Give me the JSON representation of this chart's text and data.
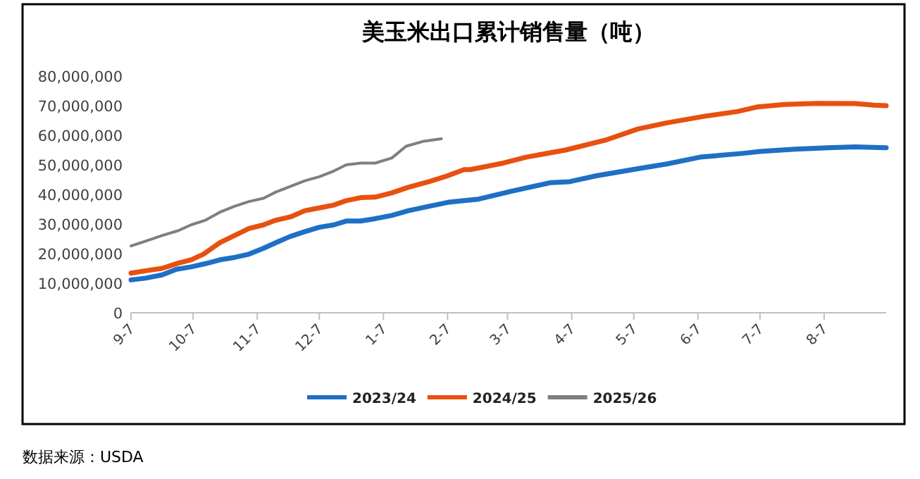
{
  "chart_data": {
    "type": "line",
    "title": "美玉米出口累计销售量（吨）",
    "annotations": [
      "数据来源：USDA"
    ],
    "xlim": [
      "2023-09-07",
      "2024-09-06"
    ],
    "xticks": [
      {
        "value": "2023-09-07",
        "label": "9-7"
      },
      {
        "value": "2023-10-07",
        "label": "10-7"
      },
      {
        "value": "2023-11-07",
        "label": "11-7"
      },
      {
        "value": "2023-12-07",
        "label": "12-7"
      },
      {
        "value": "2024-01-07",
        "label": "1-7"
      },
      {
        "value": "2024-02-07",
        "label": "2-7"
      },
      {
        "value": "2024-03-07",
        "label": "3-7"
      },
      {
        "value": "2024-04-07",
        "label": "4-7"
      },
      {
        "value": "2024-05-07",
        "label": "5-7"
      },
      {
        "value": "2024-06-07",
        "label": "6-7"
      },
      {
        "value": "2024-07-07",
        "label": "7-7"
      },
      {
        "value": "2024-08-07",
        "label": "8-7"
      }
    ],
    "ylim": [
      0,
      80000000
    ],
    "yticks": [
      {
        "value": 0,
        "label": "0"
      },
      {
        "value": 10000000,
        "label": "10,000,000"
      },
      {
        "value": 20000000,
        "label": "20,000,000"
      },
      {
        "value": 30000000,
        "label": "30,000,000"
      },
      {
        "value": 40000000,
        "label": "40,000,000"
      },
      {
        "value": 50000000,
        "label": "50,000,000"
      },
      {
        "value": 60000000,
        "label": "60,000,000"
      },
      {
        "value": 70000000,
        "label": "70,000,000"
      },
      {
        "value": 80000000,
        "label": "80,000,000"
      }
    ],
    "grid": false,
    "legend": "bottom",
    "marker": "none",
    "line_style": "solid",
    "series": [
      {
        "name": "2023/24",
        "color": "#1f6fc5",
        "x": [
          "2023-09-07",
          "2023-09-14",
          "2023-09-22",
          "2023-09-29",
          "2023-10-06",
          "2023-10-13",
          "2023-10-20",
          "2023-10-27",
          "2023-11-03",
          "2023-11-10",
          "2023-11-16",
          "2023-11-23",
          "2023-11-30",
          "2023-12-07",
          "2023-12-14",
          "2023-12-20",
          "2023-12-27",
          "2024-01-03",
          "2024-01-11",
          "2024-01-19",
          "2024-01-29",
          "2024-02-07",
          "2024-02-15",
          "2024-02-22",
          "2024-03-09",
          "2024-03-28",
          "2024-04-06",
          "2024-04-19",
          "2024-05-09",
          "2024-05-23",
          "2024-06-08",
          "2024-06-29",
          "2024-07-07",
          "2024-07-24",
          "2024-08-09",
          "2024-08-22",
          "2024-09-06"
        ],
        "values": [
          11100000,
          11700000,
          12800000,
          14700000,
          15500000,
          16600000,
          17900000,
          18700000,
          19800000,
          21800000,
          23700000,
          25800000,
          27400000,
          28900000,
          29700000,
          31000000,
          31000000,
          31800000,
          32900000,
          34500000,
          36000000,
          37300000,
          37900000,
          38400000,
          41100000,
          44000000,
          44300000,
          46300000,
          48700000,
          50300000,
          52600000,
          53900000,
          54500000,
          55300000,
          55800000,
          56100000,
          55800000
        ]
      },
      {
        "name": "2024/25",
        "color": "#e8500f",
        "x": [
          "2023-09-07",
          "2023-09-14",
          "2023-09-22",
          "2023-09-30",
          "2023-10-06",
          "2023-10-12",
          "2023-10-20",
          "2023-10-27",
          "2023-11-03",
          "2023-11-10",
          "2023-11-16",
          "2023-11-23",
          "2023-11-30",
          "2023-12-09",
          "2023-12-14",
          "2023-12-20",
          "2023-12-27",
          "2024-01-03",
          "2024-01-11",
          "2024-01-19",
          "2024-01-29",
          "2024-02-07",
          "2024-02-15",
          "2024-02-18",
          "2024-03-05",
          "2024-03-16",
          "2024-04-04",
          "2024-04-24",
          "2024-05-09",
          "2024-05-23",
          "2024-06-10",
          "2024-06-26",
          "2024-07-06",
          "2024-07-19",
          "2024-08-04",
          "2024-08-22",
          "2024-08-31",
          "2024-09-06"
        ],
        "values": [
          13400000,
          14200000,
          15000000,
          16800000,
          17900000,
          19800000,
          23700000,
          26100000,
          28500000,
          29700000,
          31300000,
          32400000,
          34500000,
          35700000,
          36400000,
          37900000,
          38900000,
          39100000,
          40500000,
          42400000,
          44300000,
          46300000,
          48400000,
          48400000,
          50600000,
          52600000,
          55000000,
          58500000,
          62100000,
          64200000,
          66400000,
          68000000,
          69600000,
          70400000,
          70800000,
          70700000,
          70200000,
          70000000
        ]
      },
      {
        "name": "2025/26",
        "color": "#7f7f7f",
        "x": [
          "2023-09-07",
          "2023-09-14",
          "2023-09-22",
          "2023-09-30",
          "2023-10-06",
          "2023-10-13",
          "2023-10-20",
          "2023-10-27",
          "2023-11-03",
          "2023-11-10",
          "2023-11-16",
          "2023-11-23",
          "2023-11-30",
          "2023-12-07",
          "2023-12-14",
          "2023-12-20",
          "2023-12-27",
          "2024-01-03",
          "2024-01-11",
          "2024-01-18",
          "2024-01-26",
          "2024-02-04"
        ],
        "values": [
          22600000,
          24200000,
          26100000,
          27800000,
          29700000,
          31300000,
          34000000,
          36000000,
          37600000,
          38700000,
          40800000,
          42700000,
          44600000,
          46000000,
          47900000,
          50000000,
          50600000,
          50600000,
          52300000,
          56300000,
          57900000,
          58800000
        ]
      }
    ]
  }
}
